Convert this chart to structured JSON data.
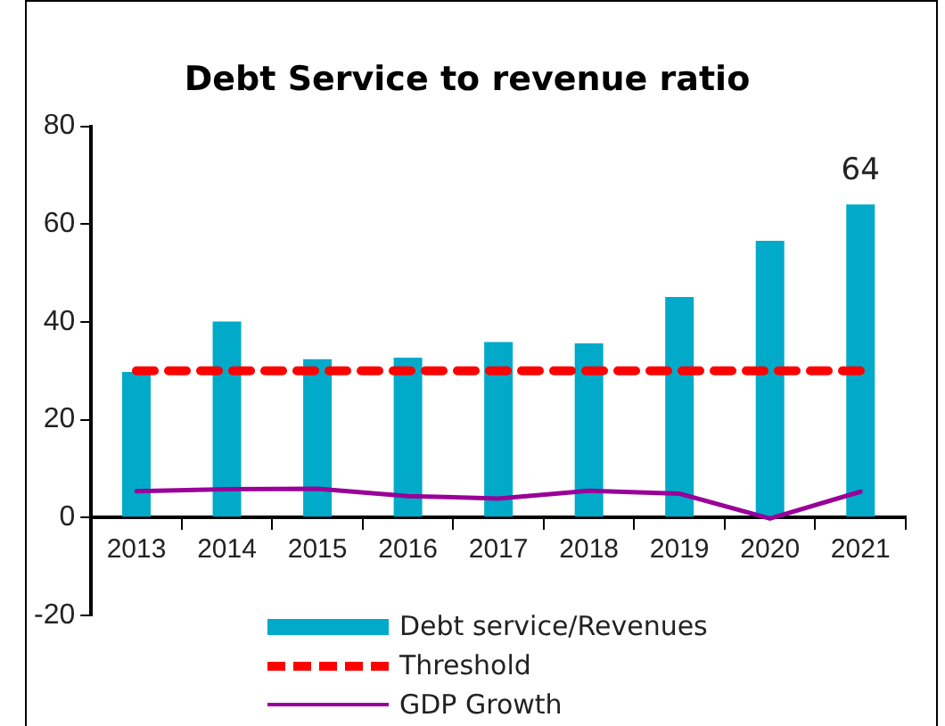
{
  "chart_data": {
    "type": "bar",
    "title": "Debt Service to revenue ratio",
    "categories": [
      "2013",
      "2014",
      "2015",
      "2016",
      "2017",
      "2018",
      "2019",
      "2020",
      "2021"
    ],
    "series": [
      {
        "name": "Debt service/Revenues",
        "color": "#00aac8",
        "values": [
          29.8,
          40.1,
          32.4,
          32.7,
          35.9,
          35.6,
          45.1,
          56.6,
          64
        ],
        "value_labels": [
          null,
          null,
          null,
          null,
          null,
          null,
          null,
          null,
          "64"
        ]
      },
      {
        "name": "Threshold",
        "type": "line",
        "color": "#ff0000",
        "line_style": "dashed",
        "values": [
          30,
          30,
          30,
          30,
          30,
          30,
          30,
          30,
          30
        ]
      },
      {
        "name": "GDP Growth",
        "type": "line",
        "color": "#990099",
        "line_style": "solid",
        "values": [
          5.4,
          5.8,
          5.9,
          4.4,
          3.9,
          5.5,
          4.9,
          -0.2,
          5.3
        ]
      }
    ],
    "ylim": [
      -20,
      80
    ],
    "yticks": [
      -20,
      0,
      20,
      40,
      60,
      80
    ],
    "grid": false,
    "legend": "bottom",
    "marker": "none"
  }
}
